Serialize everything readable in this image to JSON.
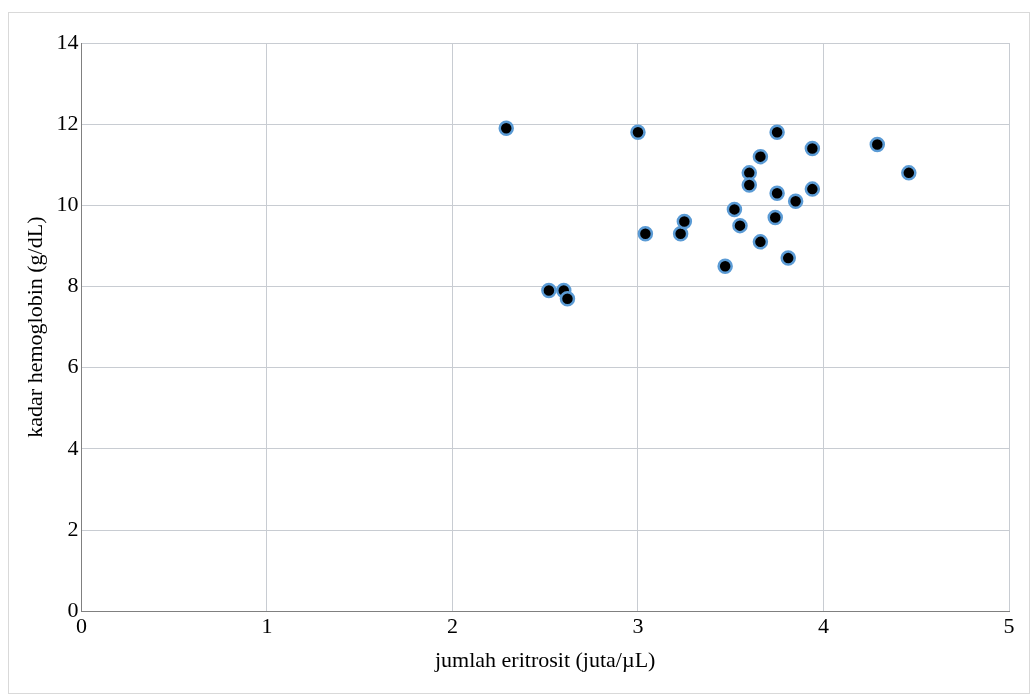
{
  "chart_data": {
    "type": "scatter",
    "xlabel": "jumlah eritrosit (juta/µL)",
    "ylabel": "kadar hemoglobin (g/dL)",
    "x": [
      2.29,
      2.52,
      2.6,
      2.62,
      3.0,
      3.04,
      3.23,
      3.25,
      3.47,
      3.52,
      3.55,
      3.6,
      3.6,
      3.66,
      3.66,
      3.75,
      3.75,
      3.74,
      3.81,
      3.85,
      3.94,
      3.94,
      4.29,
      4.46
    ],
    "values": [
      11.9,
      7.9,
      7.9,
      7.7,
      11.8,
      9.3,
      9.3,
      9.6,
      8.5,
      9.9,
      9.5,
      10.8,
      10.5,
      11.2,
      9.1,
      11.8,
      10.3,
      9.7,
      8.7,
      10.1,
      11.4,
      10.4,
      11.5,
      10.8
    ],
    "color": "#000000",
    "marker": "circle",
    "grid": true,
    "xlim": [
      0,
      5
    ],
    "xticks": [
      0,
      1,
      2,
      3,
      4,
      5
    ],
    "ylim": [
      0,
      14
    ],
    "yticks": [
      0,
      2,
      4,
      6,
      8,
      10,
      12,
      14
    ]
  }
}
